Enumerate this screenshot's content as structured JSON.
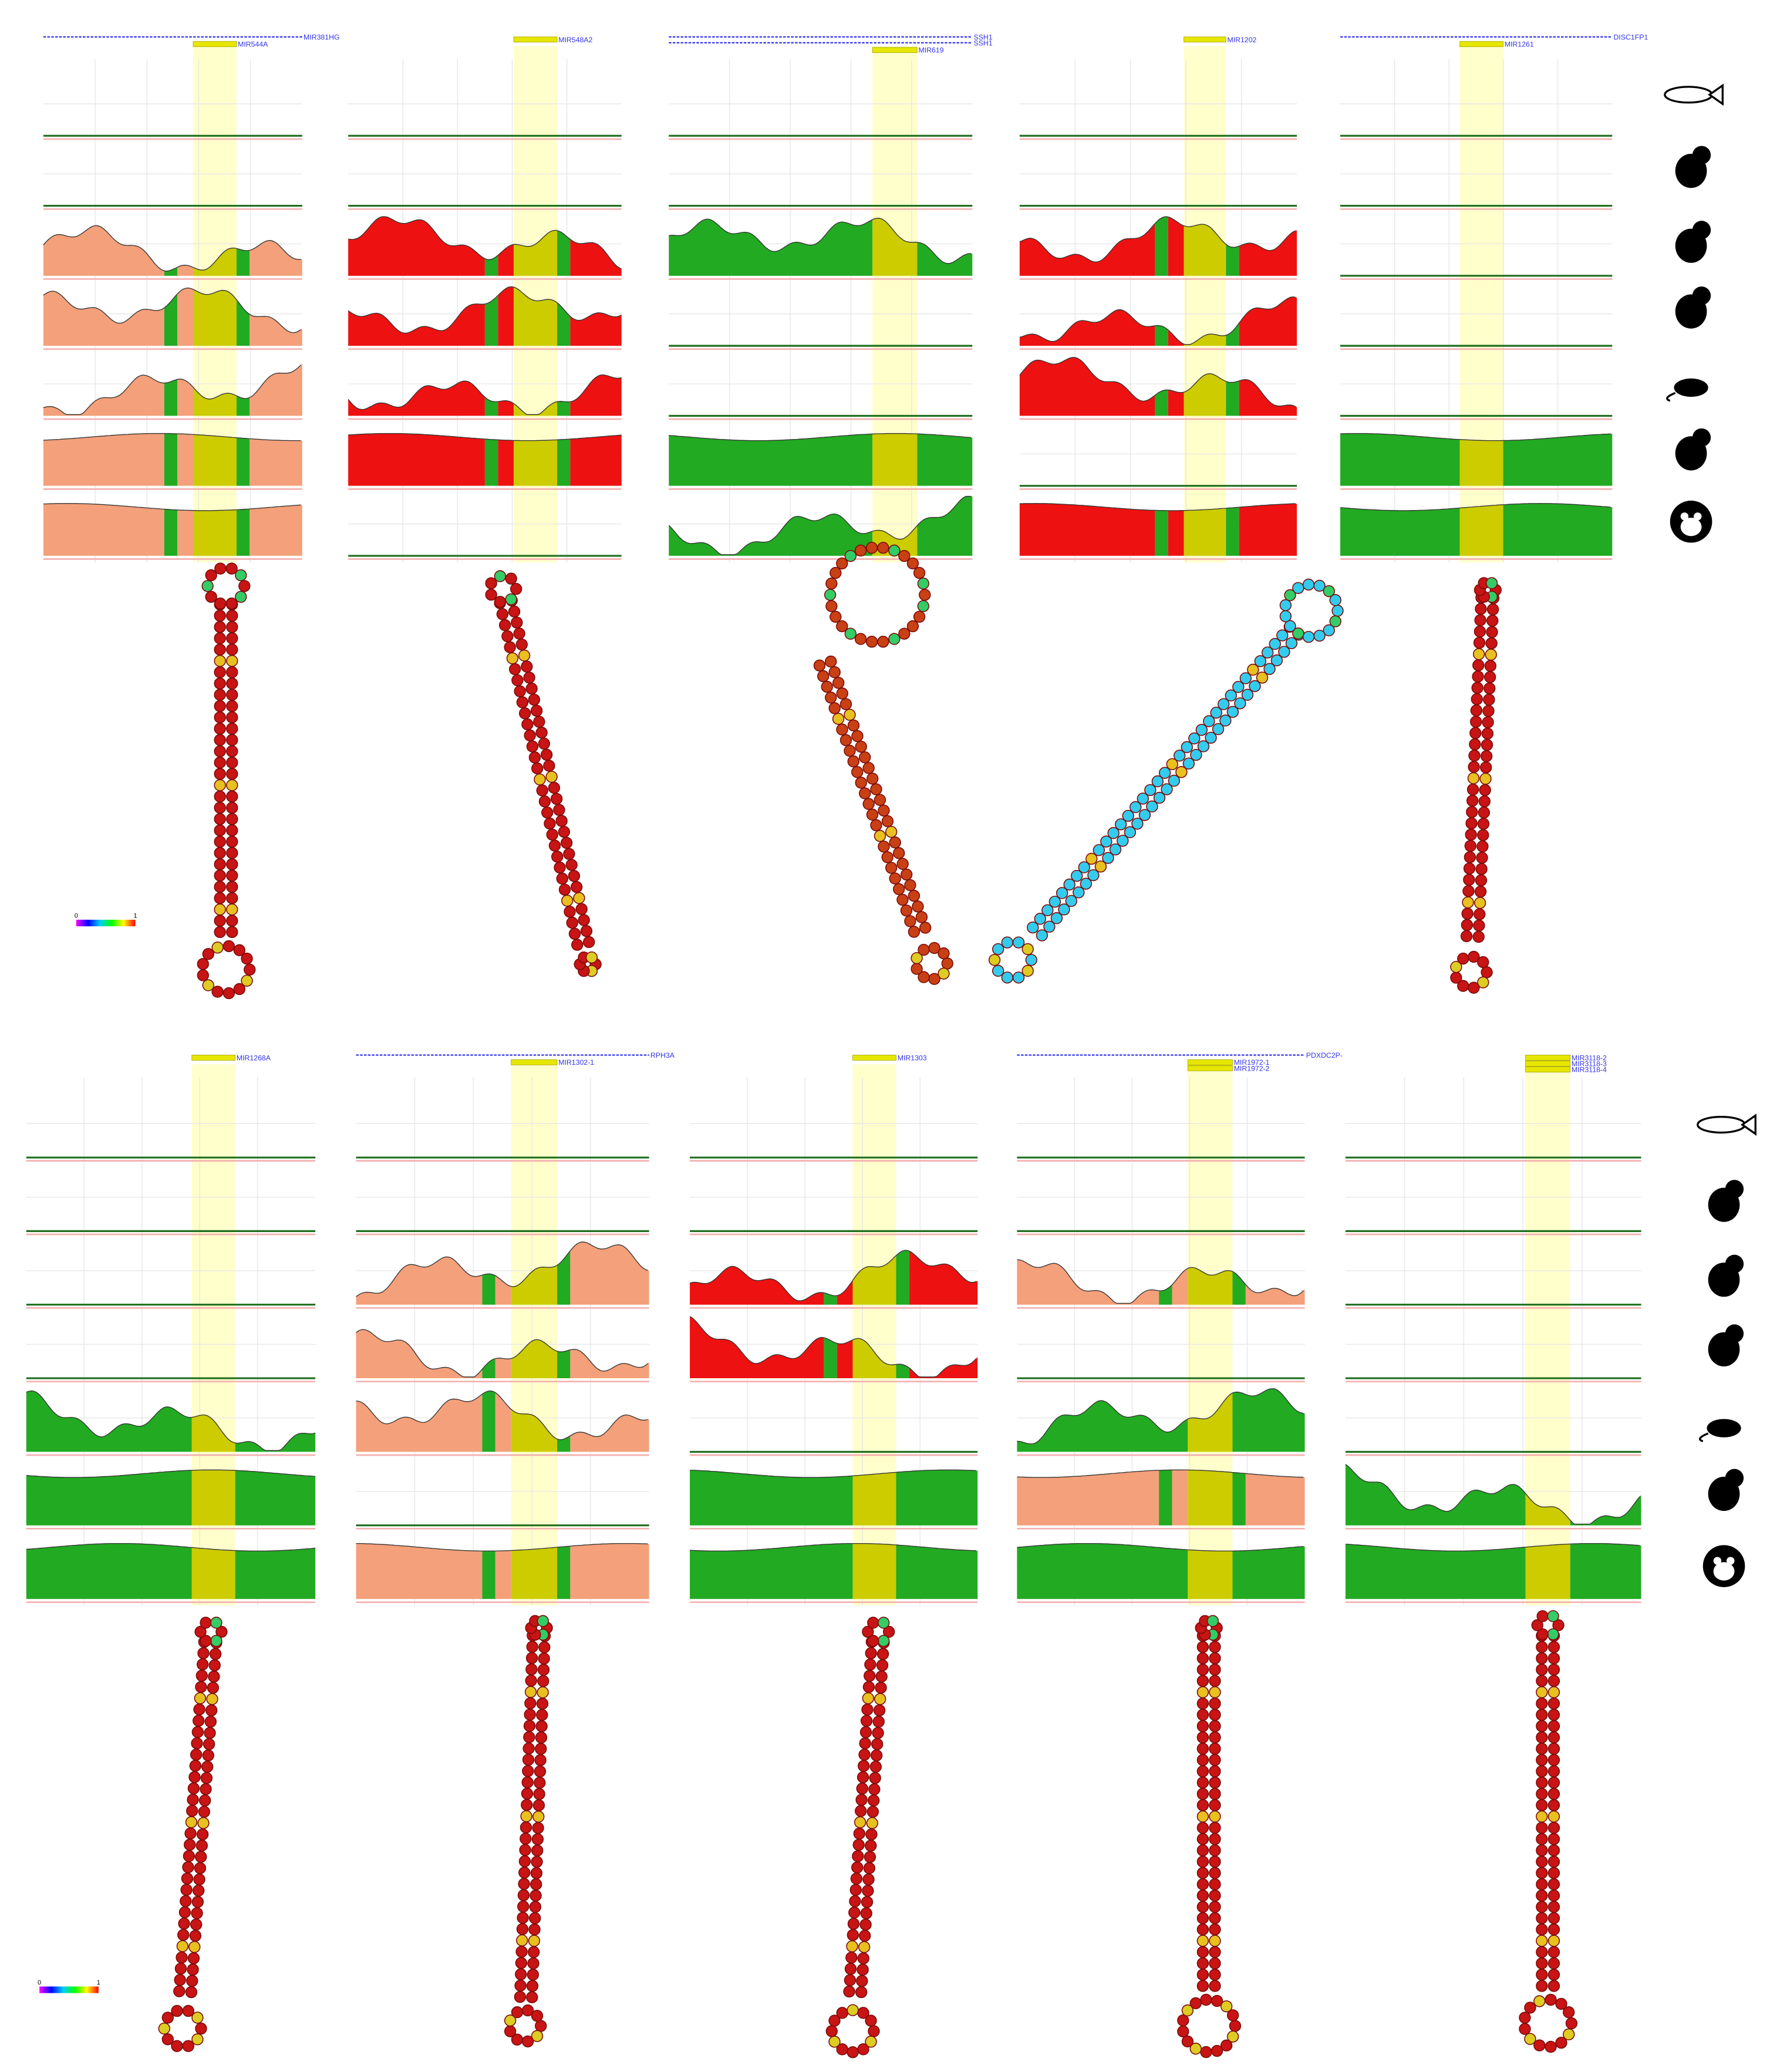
{
  "panels": [
    {
      "strand_labels": [
        "MIR381HG"
      ],
      "mirna_labels": [
        "MIR544A"
      ]
    },
    {
      "strand_labels": [],
      "mirna_labels": [
        "MIR548A2"
      ]
    },
    {
      "strand_labels": [
        "SSH1",
        "SSH1"
      ],
      "mirna_labels": [
        "MIR619"
      ]
    },
    {
      "strand_labels": [],
      "mirna_labels": [
        "MIR1202"
      ]
    },
    {
      "strand_labels": [
        "DISC1FP1"
      ],
      "mirna_labels": [
        "MIR1261"
      ]
    },
    {
      "strand_labels": [],
      "mirna_labels": [
        "MIR1268A"
      ]
    },
    {
      "strand_labels": [
        "RPH3A"
      ],
      "mirna_labels": [
        "MIR1302-1"
      ]
    },
    {
      "strand_labels": [],
      "mirna_labels": [
        "MIR1303"
      ]
    },
    {
      "strand_labels": [
        "PDXDC2P-"
      ],
      "mirna_labels": [
        "MIR1972-1",
        "MIR1972-2"
      ]
    },
    {
      "strand_labels": [],
      "mirna_labels": [
        "MIR3118-2",
        "MIR3118-3",
        "MIR3118-4"
      ]
    }
  ],
  "color_scales": [
    {
      "min": 0,
      "max": 1
    },
    {
      "min": 0,
      "max": 1
    }
  ]
}
